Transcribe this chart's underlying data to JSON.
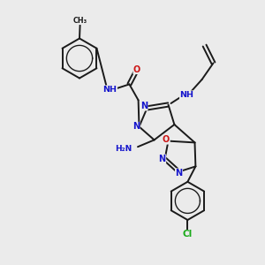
{
  "bg_color": "#ebebeb",
  "bond_color": "#1a1a1a",
  "N_color": "#1414cc",
  "O_color": "#cc1414",
  "Cl_color": "#1aaa1a",
  "bond_lw": 1.4,
  "figsize": [
    3.0,
    3.0
  ],
  "dpi": 100,
  "xlim": [
    0,
    10
  ],
  "ylim": [
    0,
    10
  ]
}
